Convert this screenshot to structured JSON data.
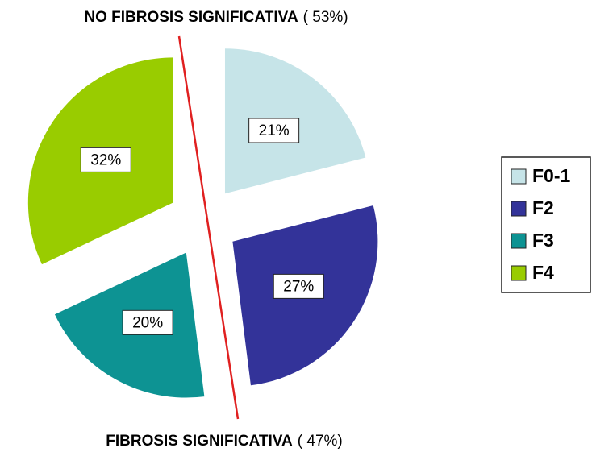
{
  "chart_data": {
    "type": "pie",
    "categories": [
      "F0-1",
      "F2",
      "F3",
      "F4"
    ],
    "values": [
      21,
      27,
      20,
      32
    ],
    "value_labels": [
      "21%",
      "27%",
      "20%",
      "32%"
    ],
    "colors": [
      "#c6e4e8",
      "#333399",
      "#0d9393",
      "#99cc00"
    ],
    "annotations": [
      {
        "bold": "NO FIBROSIS SIGNIFICATIVA",
        "detail": "( 53%)"
      },
      {
        "bold": "FIBROSIS SIGNIFICATIVA",
        "detail": "( 47%)"
      }
    ],
    "legend": "right"
  }
}
